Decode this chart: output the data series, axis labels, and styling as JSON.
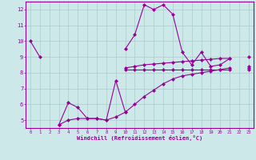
{
  "xlabel": "Windchill (Refroidissement éolien,°C)",
  "background_color": "#cce8e8",
  "grid_color": "#aacccc",
  "line_color": "#990099",
  "x_values": [
    0,
    1,
    2,
    3,
    4,
    5,
    6,
    7,
    8,
    9,
    10,
    11,
    12,
    13,
    14,
    15,
    16,
    17,
    18,
    19,
    20,
    21,
    22,
    23
  ],
  "series1": [
    10.0,
    9.0,
    null,
    null,
    null,
    null,
    null,
    null,
    null,
    null,
    9.5,
    10.4,
    12.3,
    12.0,
    12.3,
    11.7,
    9.3,
    8.5,
    9.3,
    8.4,
    8.5,
    8.9,
    null,
    8.3
  ],
  "series2": [
    null,
    null,
    null,
    null,
    null,
    null,
    null,
    null,
    null,
    null,
    8.3,
    8.4,
    8.5,
    8.55,
    8.6,
    8.65,
    8.7,
    8.75,
    8.8,
    8.85,
    8.9,
    8.9,
    null,
    9.0
  ],
  "series3": [
    null,
    null,
    null,
    null,
    null,
    null,
    null,
    null,
    null,
    null,
    8.2,
    8.2,
    8.2,
    8.2,
    8.2,
    8.2,
    8.2,
    8.2,
    8.2,
    8.2,
    8.2,
    8.2,
    null,
    8.2
  ],
  "series4": [
    null,
    null,
    null,
    4.7,
    6.1,
    5.8,
    5.1,
    5.1,
    5.0,
    7.5,
    5.5,
    null,
    null,
    null,
    null,
    null,
    null,
    null,
    null,
    null,
    null,
    null,
    null,
    null
  ],
  "series5": [
    null,
    null,
    null,
    4.7,
    5.0,
    5.1,
    5.1,
    5.1,
    5.0,
    5.2,
    5.5,
    6.0,
    6.5,
    6.9,
    7.3,
    7.6,
    7.8,
    7.9,
    8.0,
    8.1,
    8.2,
    8.3,
    null,
    8.4
  ],
  "ylim": [
    4.5,
    12.5
  ],
  "yticks": [
    5,
    6,
    7,
    8,
    9,
    10,
    11,
    12
  ],
  "xlim": [
    -0.5,
    23.5
  ],
  "xticks": [
    0,
    1,
    2,
    3,
    4,
    5,
    6,
    7,
    8,
    9,
    10,
    11,
    12,
    13,
    14,
    15,
    16,
    17,
    18,
    19,
    20,
    21,
    22,
    23
  ]
}
